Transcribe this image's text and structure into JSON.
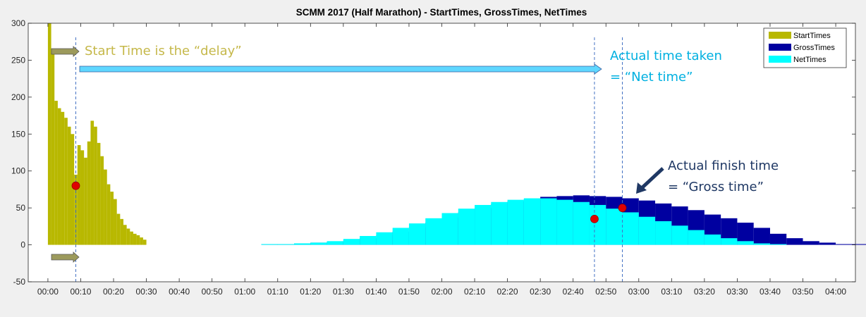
{
  "chart_data": {
    "type": "bar",
    "title": "SCMM 2017 (Half Marathon) - StartTimes, GrossTimes, NetTimes",
    "xlabel": "",
    "ylabel": "",
    "x_unit": "time (hh:mm)",
    "xlim_minutes": [
      -6,
      246
    ],
    "ylim": [
      -50,
      300
    ],
    "y_ticks": [
      -50,
      0,
      50,
      100,
      150,
      200,
      250,
      300
    ],
    "x_ticks": [
      "00:00",
      "00:10",
      "00:20",
      "00:30",
      "00:40",
      "00:50",
      "01:00",
      "01:10",
      "01:20",
      "01:30",
      "01:40",
      "01:50",
      "02:00",
      "02:10",
      "02:20",
      "02:30",
      "02:40",
      "02:50",
      "03:00",
      "03:10",
      "03:20",
      "03:30",
      "03:40",
      "03:50",
      "04:00"
    ],
    "grid": false,
    "legend_position": "top-right",
    "series": [
      {
        "name": "StartTimes",
        "color": "#b8b800",
        "x_minutes": [
          0,
          1,
          2,
          3,
          4,
          5,
          6,
          7,
          8,
          9,
          10,
          11,
          12,
          13,
          14,
          15,
          16,
          17,
          18,
          19,
          20,
          21,
          22,
          23,
          24,
          25,
          26,
          27,
          28,
          29
        ],
        "values": [
          300,
          260,
          195,
          185,
          180,
          172,
          160,
          150,
          95,
          135,
          128,
          118,
          140,
          168,
          160,
          138,
          120,
          102,
          82,
          72,
          62,
          42,
          35,
          27,
          22,
          18,
          15,
          13,
          10,
          7
        ]
      },
      {
        "name": "GrossTimes",
        "color": "#0000a0",
        "x_minutes": [
          65,
          70,
          75,
          80,
          85,
          90,
          95,
          100,
          105,
          110,
          115,
          120,
          125,
          130,
          135,
          140,
          145,
          150,
          155,
          160,
          165,
          170,
          175,
          180,
          185,
          190,
          195,
          200,
          205,
          210,
          215,
          220,
          225,
          230,
          235,
          240,
          245
        ],
        "values": [
          1,
          1,
          2,
          3,
          4,
          6,
          9,
          13,
          18,
          24,
          30,
          37,
          44,
          50,
          55,
          59,
          62,
          65,
          66,
          67,
          66,
          65,
          63,
          60,
          56,
          52,
          47,
          41,
          36,
          30,
          23,
          15,
          9,
          5,
          3,
          1,
          1
        ]
      },
      {
        "name": "NetTimes",
        "color": "#00ffff",
        "x_minutes": [
          65,
          70,
          75,
          80,
          85,
          90,
          95,
          100,
          105,
          110,
          115,
          120,
          125,
          130,
          135,
          140,
          145,
          150,
          155,
          160,
          165,
          170,
          175,
          180,
          185,
          190,
          195,
          200,
          205,
          210,
          215,
          220
        ],
        "values": [
          1,
          1,
          2,
          3,
          5,
          8,
          12,
          17,
          23,
          29,
          36,
          43,
          49,
          54,
          58,
          61,
          63,
          63,
          61,
          58,
          54,
          49,
          44,
          38,
          32,
          26,
          20,
          14,
          9,
          5,
          2,
          1
        ]
      }
    ],
    "markers": [
      {
        "x_minutes": 8.5,
        "y": 80
      },
      {
        "x_minutes": 166.5,
        "y": 35
      },
      {
        "x_minutes": 175,
        "y": 50
      }
    ],
    "reference_lines_minutes": [
      8.5,
      166.5,
      175
    ],
    "annotations": {
      "start": "Start Time is the “delay”",
      "net_line1": "Actual time taken",
      "net_line2": "= “Net time”",
      "gross_line1": "Actual finish time",
      "gross_line2": "= “Gross time”"
    }
  }
}
